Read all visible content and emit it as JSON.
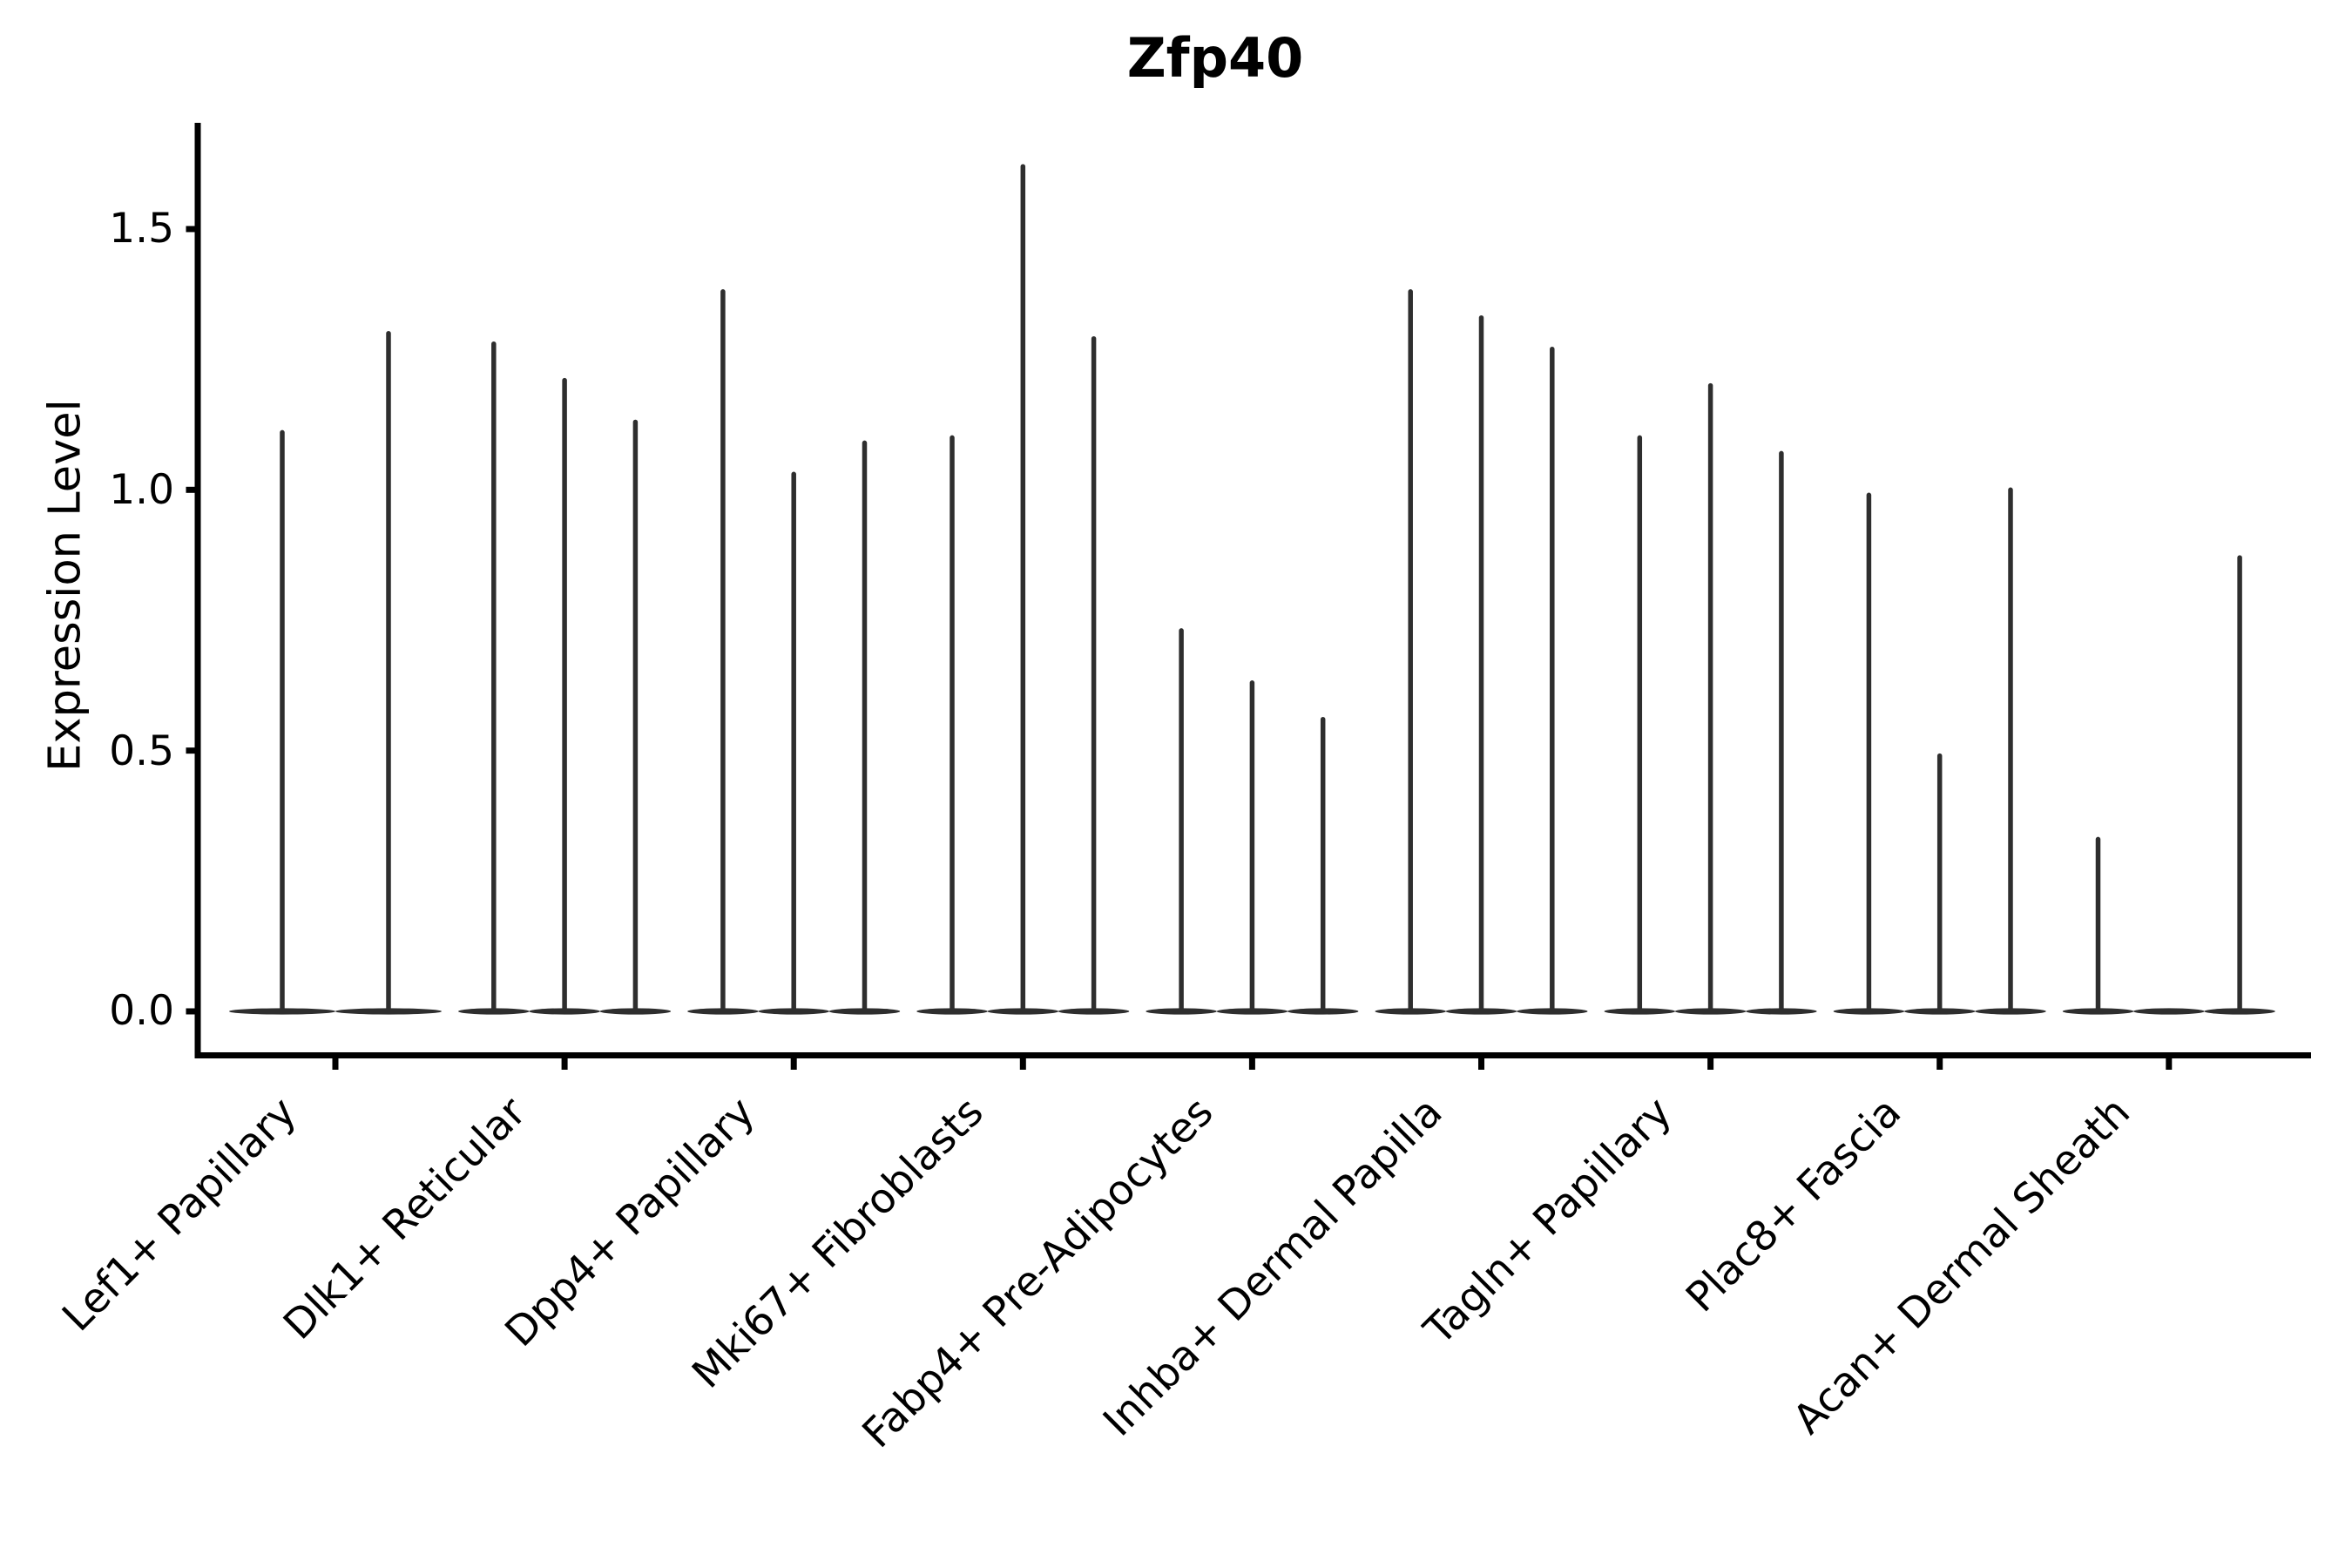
{
  "chart_data": {
    "type": "violin",
    "title": "Zfp40",
    "ylabel": "Expression Level",
    "xlabel": "",
    "ytick_labels": [
      "0.0",
      "0.5",
      "1.0",
      "1.5"
    ],
    "ytick_values": [
      0,
      0.5,
      1.0,
      1.5
    ],
    "ylim": [
      -0.08,
      1.7
    ],
    "grid": false,
    "legend": "none",
    "x_tick_rotation_deg": 45,
    "violin_color": "#2e2e2e",
    "axis_color": "#000000",
    "background_color": "#ffffff",
    "description": "Narrow spike-shaped violins of zero-inflated expression; each category holds 2-3 sub-violins with flat bases at 0, spike height = max expression",
    "series": [
      {
        "category": "Lef1+ Papillary",
        "violins": [
          1.11,
          1.3
        ]
      },
      {
        "category": "Dlk1+ Reticular",
        "violins": [
          1.28,
          1.21,
          1.13
        ]
      },
      {
        "category": "Dpp4+ Papillary",
        "violins": [
          1.38,
          1.03,
          1.09
        ]
      },
      {
        "category": "Mki67+ Fibroblasts",
        "violins": [
          1.1,
          1.62,
          1.29
        ]
      },
      {
        "category": "Fabp4+ Pre-Adipocytes",
        "violins": [
          0.73,
          0.63,
          0.56
        ]
      },
      {
        "category": "Inhba+ Dermal Papilla",
        "violins": [
          1.38,
          1.33,
          1.27
        ]
      },
      {
        "category": "Tagln+ Papillary",
        "violins": [
          1.1,
          1.2,
          1.07
        ]
      },
      {
        "category": "Plac8+ Fascia",
        "violins": [
          0.99,
          0.49,
          1.0
        ]
      },
      {
        "category": "Acan+ Dermal Sheath",
        "violins": [
          0.33,
          0.0,
          0.87
        ]
      }
    ]
  }
}
